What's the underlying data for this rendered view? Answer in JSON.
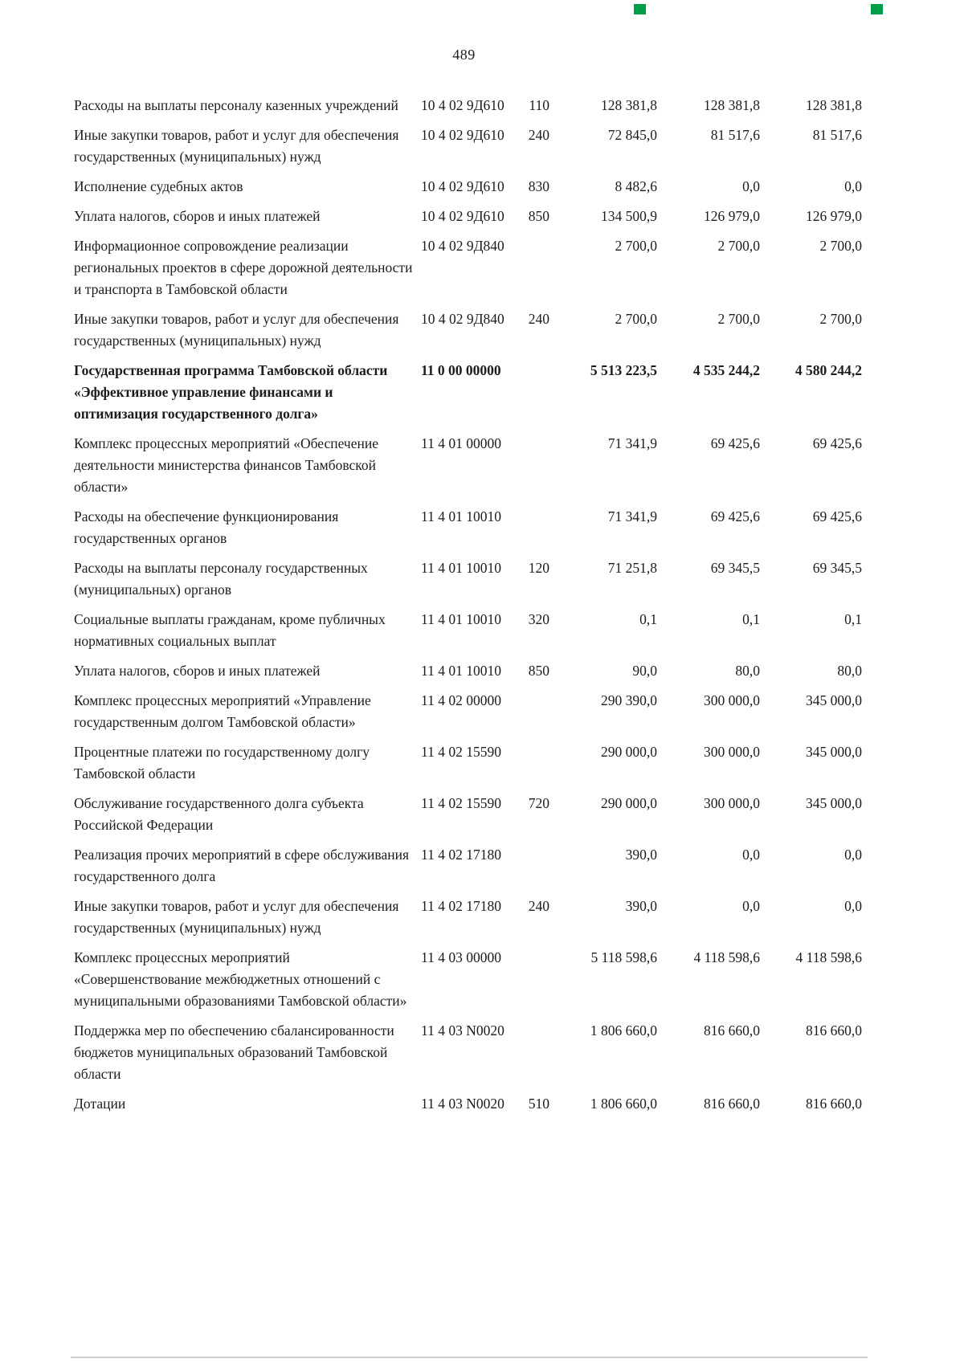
{
  "page": {
    "number": "489"
  },
  "artifacts": {
    "mark_color": "#00a04b"
  },
  "table": {
    "rows": [
      {
        "name": "Расходы на выплаты персоналу казенных учреждений",
        "code": "10 4 02 9Д610",
        "vr": "110",
        "a1": "128 381,8",
        "a2": "128 381,8",
        "a3": "128 381,8",
        "bold": false
      },
      {
        "name": "Иные закупки товаров, работ и услуг для обеспечения государственных (муниципальных) нужд",
        "code": "10 4 02 9Д610",
        "vr": "240",
        "a1": "72 845,0",
        "a2": "81 517,6",
        "a3": "81 517,6",
        "bold": false
      },
      {
        "name": "Исполнение судебных актов",
        "code": "10 4 02 9Д610",
        "vr": "830",
        "a1": "8 482,6",
        "a2": "0,0",
        "a3": "0,0",
        "bold": false
      },
      {
        "name": "Уплата налогов, сборов и иных платежей",
        "code": "10 4 02 9Д610",
        "vr": "850",
        "a1": "134 500,9",
        "a2": "126 979,0",
        "a3": "126 979,0",
        "bold": false
      },
      {
        "name": "Информационное сопровождение реализации региональных проектов в сфере дорожной деятельности и транспорта в Тамбовской области",
        "code": "10 4 02 9Д840",
        "vr": "",
        "a1": "2 700,0",
        "a2": "2 700,0",
        "a3": "2 700,0",
        "bold": false
      },
      {
        "name": "Иные закупки товаров, работ и услуг для обеспечения государственных (муниципальных) нужд",
        "code": "10 4 02 9Д840",
        "vr": "240",
        "a1": "2 700,0",
        "a2": "2 700,0",
        "a3": "2 700,0",
        "bold": false
      },
      {
        "name": "Государственная программа Тамбовской области «Эффективное управление финансами и оптимизация государственного долга»",
        "code": "11 0 00 00000",
        "vr": "",
        "a1": "5 513 223,5",
        "a2": "4 535 244,2",
        "a3": "4 580 244,2",
        "bold": true
      },
      {
        "name": "Комплекс процессных мероприятий «Обеспечение деятельности министерства финансов Тамбовской области»",
        "code": "11 4 01 00000",
        "vr": "",
        "a1": "71 341,9",
        "a2": "69 425,6",
        "a3": "69 425,6",
        "bold": false
      },
      {
        "name": "Расходы на обеспечение функционирования государственных органов",
        "code": "11 4 01 10010",
        "vr": "",
        "a1": "71 341,9",
        "a2": "69 425,6",
        "a3": "69 425,6",
        "bold": false
      },
      {
        "name": "Расходы на выплаты персоналу государственных (муниципальных) органов",
        "code": "11 4 01 10010",
        "vr": "120",
        "a1": "71 251,8",
        "a2": "69 345,5",
        "a3": "69 345,5",
        "bold": false
      },
      {
        "name": "Социальные выплаты гражданам, кроме публичных нормативных социальных выплат",
        "code": "11 4 01 10010",
        "vr": "320",
        "a1": "0,1",
        "a2": "0,1",
        "a3": "0,1",
        "bold": false
      },
      {
        "name": "Уплата налогов, сборов и иных платежей",
        "code": "11 4 01 10010",
        "vr": "850",
        "a1": "90,0",
        "a2": "80,0",
        "a3": "80,0",
        "bold": false
      },
      {
        "name": "Комплекс процессных мероприятий «Управление государственным долгом Тамбовской области»",
        "code": "11 4 02 00000",
        "vr": "",
        "a1": "290 390,0",
        "a2": "300 000,0",
        "a3": "345 000,0",
        "bold": false
      },
      {
        "name": "Процентные платежи по государственному долгу Тамбовской области",
        "code": "11 4 02 15590",
        "vr": "",
        "a1": "290 000,0",
        "a2": "300 000,0",
        "a3": "345 000,0",
        "bold": false
      },
      {
        "name": "Обслуживание государственного долга субъекта Российской Федерации",
        "code": "11 4 02 15590",
        "vr": "720",
        "a1": "290 000,0",
        "a2": "300 000,0",
        "a3": "345 000,0",
        "bold": false
      },
      {
        "name": "Реализация прочих мероприятий в сфере обслуживания государственного долга",
        "code": "11 4 02 17180",
        "vr": "",
        "a1": "390,0",
        "a2": "0,0",
        "a3": "0,0",
        "bold": false
      },
      {
        "name": "Иные закупки товаров, работ и услуг для обеспечения государственных (муниципальных) нужд",
        "code": "11 4 02 17180",
        "vr": "240",
        "a1": "390,0",
        "a2": "0,0",
        "a3": "0,0",
        "bold": false
      },
      {
        "name": "Комплекс процессных мероприятий «Совершенствование межбюджетных отношений с муниципальными образованиями Тамбовской области»",
        "code": "11 4 03 00000",
        "vr": "",
        "a1": "5 118 598,6",
        "a2": "4 118 598,6",
        "a3": "4 118 598,6",
        "bold": false
      },
      {
        "name": "Поддержка мер по обеспечению сбалансированности бюджетов муниципальных образований Тамбовской области",
        "code": "11 4 03 N0020",
        "vr": "",
        "a1": "1 806 660,0",
        "a2": "816 660,0",
        "a3": "816 660,0",
        "bold": false
      },
      {
        "name": "Дотации",
        "code": "11 4 03 N0020",
        "vr": "510",
        "a1": "1 806 660,0",
        "a2": "816 660,0",
        "a3": "816 660,0",
        "bold": false
      }
    ]
  }
}
